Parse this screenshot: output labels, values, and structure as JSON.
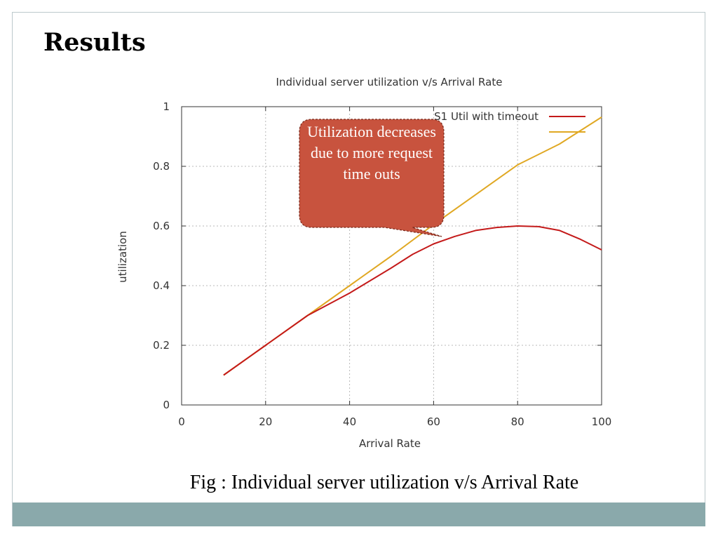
{
  "slide": {
    "title": "Results",
    "caption": "Fig : Individual server utilization v/s Arrival Rate",
    "callout": "Utilization decreases due to more request time outs"
  },
  "colors": {
    "footer": "#8aa9ab",
    "callout_fill": "#c8533e",
    "series_timeout": "#c41a1a",
    "series_no_timeout": "#e0a823",
    "grid": "#b8b8b8"
  },
  "chart_data": {
    "type": "line",
    "title": "Individual server utilization v/s Arrival Rate",
    "xlabel": "Arrival Rate",
    "ylabel": "utilization",
    "xlim": [
      0,
      100
    ],
    "ylim": [
      0,
      1
    ],
    "xticks": [
      "0",
      "20",
      "40",
      "60",
      "80",
      "100"
    ],
    "yticks": [
      "0",
      "0.2",
      "0.4",
      "0.6",
      "0.8",
      "1"
    ],
    "grid": true,
    "legend_position": "top-right",
    "series": [
      {
        "name": "S1 Util with timeout",
        "color": "#c41a1a",
        "x": [
          10,
          20,
          30,
          40,
          50,
          55,
          60,
          65,
          70,
          75,
          80,
          85,
          90,
          95,
          100
        ],
        "y": [
          0.1,
          0.2,
          0.3,
          0.375,
          0.46,
          0.505,
          0.54,
          0.565,
          0.585,
          0.595,
          0.6,
          0.598,
          0.585,
          0.555,
          0.52
        ]
      },
      {
        "color": "#e0a823",
        "x": [
          10,
          20,
          30,
          40,
          50,
          60,
          70,
          80,
          90,
          100
        ],
        "y": [
          0.1,
          0.2,
          0.3,
          0.4,
          0.5,
          0.605,
          0.705,
          0.805,
          0.875,
          0.965
        ]
      }
    ]
  }
}
